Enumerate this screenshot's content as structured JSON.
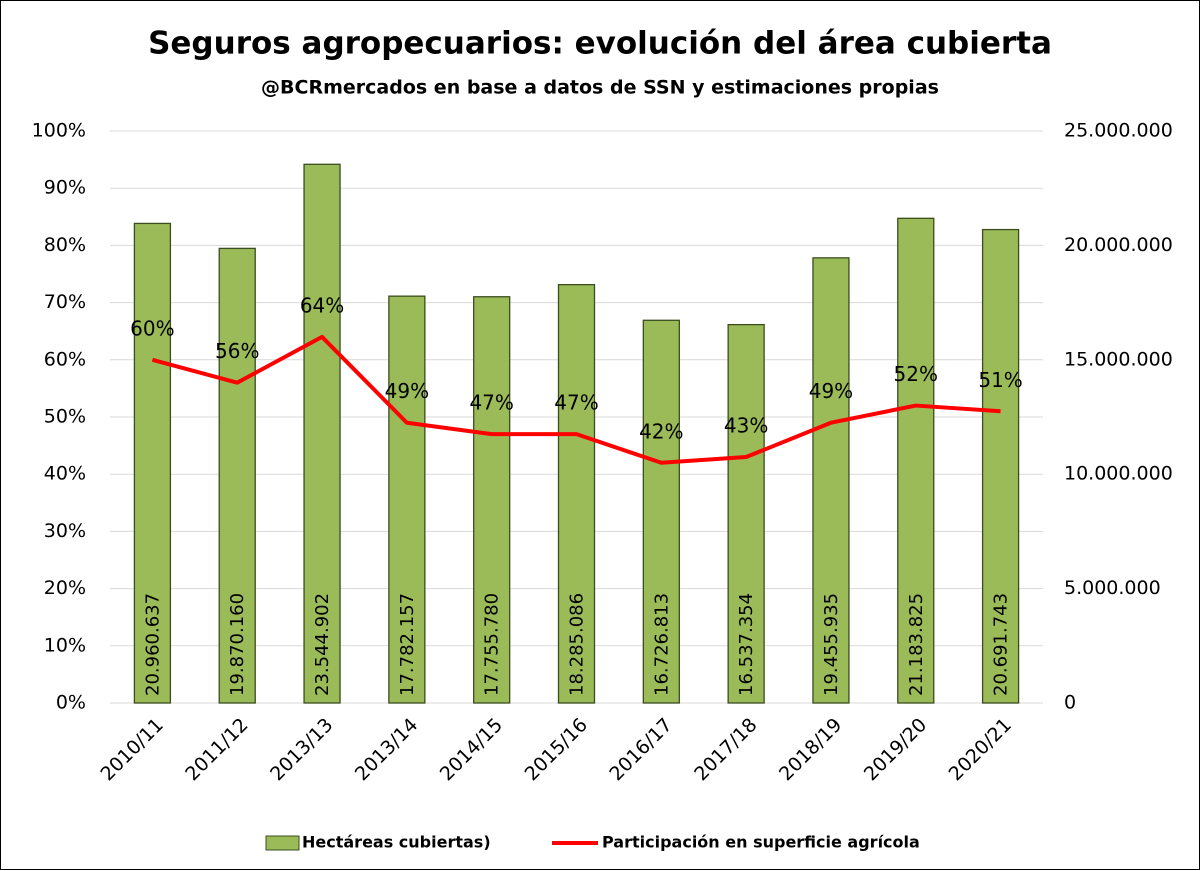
{
  "chart_data": {
    "type": "bar",
    "title": "Seguros agropecuarios: evolución del área cubierta",
    "subtitle": "@BCRmercados en base a datos de SSN y estimaciones propias",
    "categories": [
      "2010/11",
      "2011/12",
      "2013/13",
      "2013/14",
      "2014/15",
      "2015/16",
      "2016/17",
      "2017/18",
      "2018/19",
      "2019/20",
      "2020/21"
    ],
    "series": [
      {
        "name": "Hectáreas cubiertas)",
        "type": "bar",
        "axis": "y2",
        "color": "#9bbb59",
        "values": [
          20960637,
          19870160,
          23544902,
          17782157,
          17755780,
          18285086,
          16726813,
          16537354,
          19455935,
          21183825,
          20691743
        ],
        "value_labels": [
          "20.960.637",
          "19.870.160",
          "23.544.902",
          "17.782.157",
          "17.755.780",
          "18.285.086",
          "16.726.813",
          "16.537.354",
          "19.455.935",
          "21.183.825",
          "20.691.743"
        ]
      },
      {
        "name": "Participación en superficie agrícola",
        "type": "line",
        "axis": "y",
        "color": "#ff0000",
        "values": [
          60,
          56,
          64,
          49,
          47,
          47,
          42,
          43,
          49,
          52,
          51
        ],
        "value_labels": [
          "60%",
          "56%",
          "64%",
          "49%",
          "47%",
          "47%",
          "42%",
          "43%",
          "49%",
          "52%",
          "51%"
        ]
      }
    ],
    "ylim": [
      0,
      100
    ],
    "yticks": [
      {
        "value": 0,
        "label": "0%"
      },
      {
        "value": 10,
        "label": "10%"
      },
      {
        "value": 20,
        "label": "20%"
      },
      {
        "value": 30,
        "label": "30%"
      },
      {
        "value": 40,
        "label": "40%"
      },
      {
        "value": 50,
        "label": "50%"
      },
      {
        "value": 60,
        "label": "60%"
      },
      {
        "value": 70,
        "label": "70%"
      },
      {
        "value": 80,
        "label": "80%"
      },
      {
        "value": 90,
        "label": "90%"
      },
      {
        "value": 100,
        "label": "100%"
      }
    ],
    "y2lim": [
      0,
      25000000
    ],
    "y2ticks": [
      0,
      {
        "value": 5000000,
        "label": "5.000.000"
      },
      {
        "value": 10000000,
        "label": "10.000.000"
      },
      {
        "value": 15000000,
        "label": "15.000.000"
      },
      {
        "value": 20000000,
        "label": "20.000.000"
      },
      {
        "value": 25000000,
        "label": "25.000.000"
      }
    ],
    "grid": true,
    "legend": "bottom"
  }
}
